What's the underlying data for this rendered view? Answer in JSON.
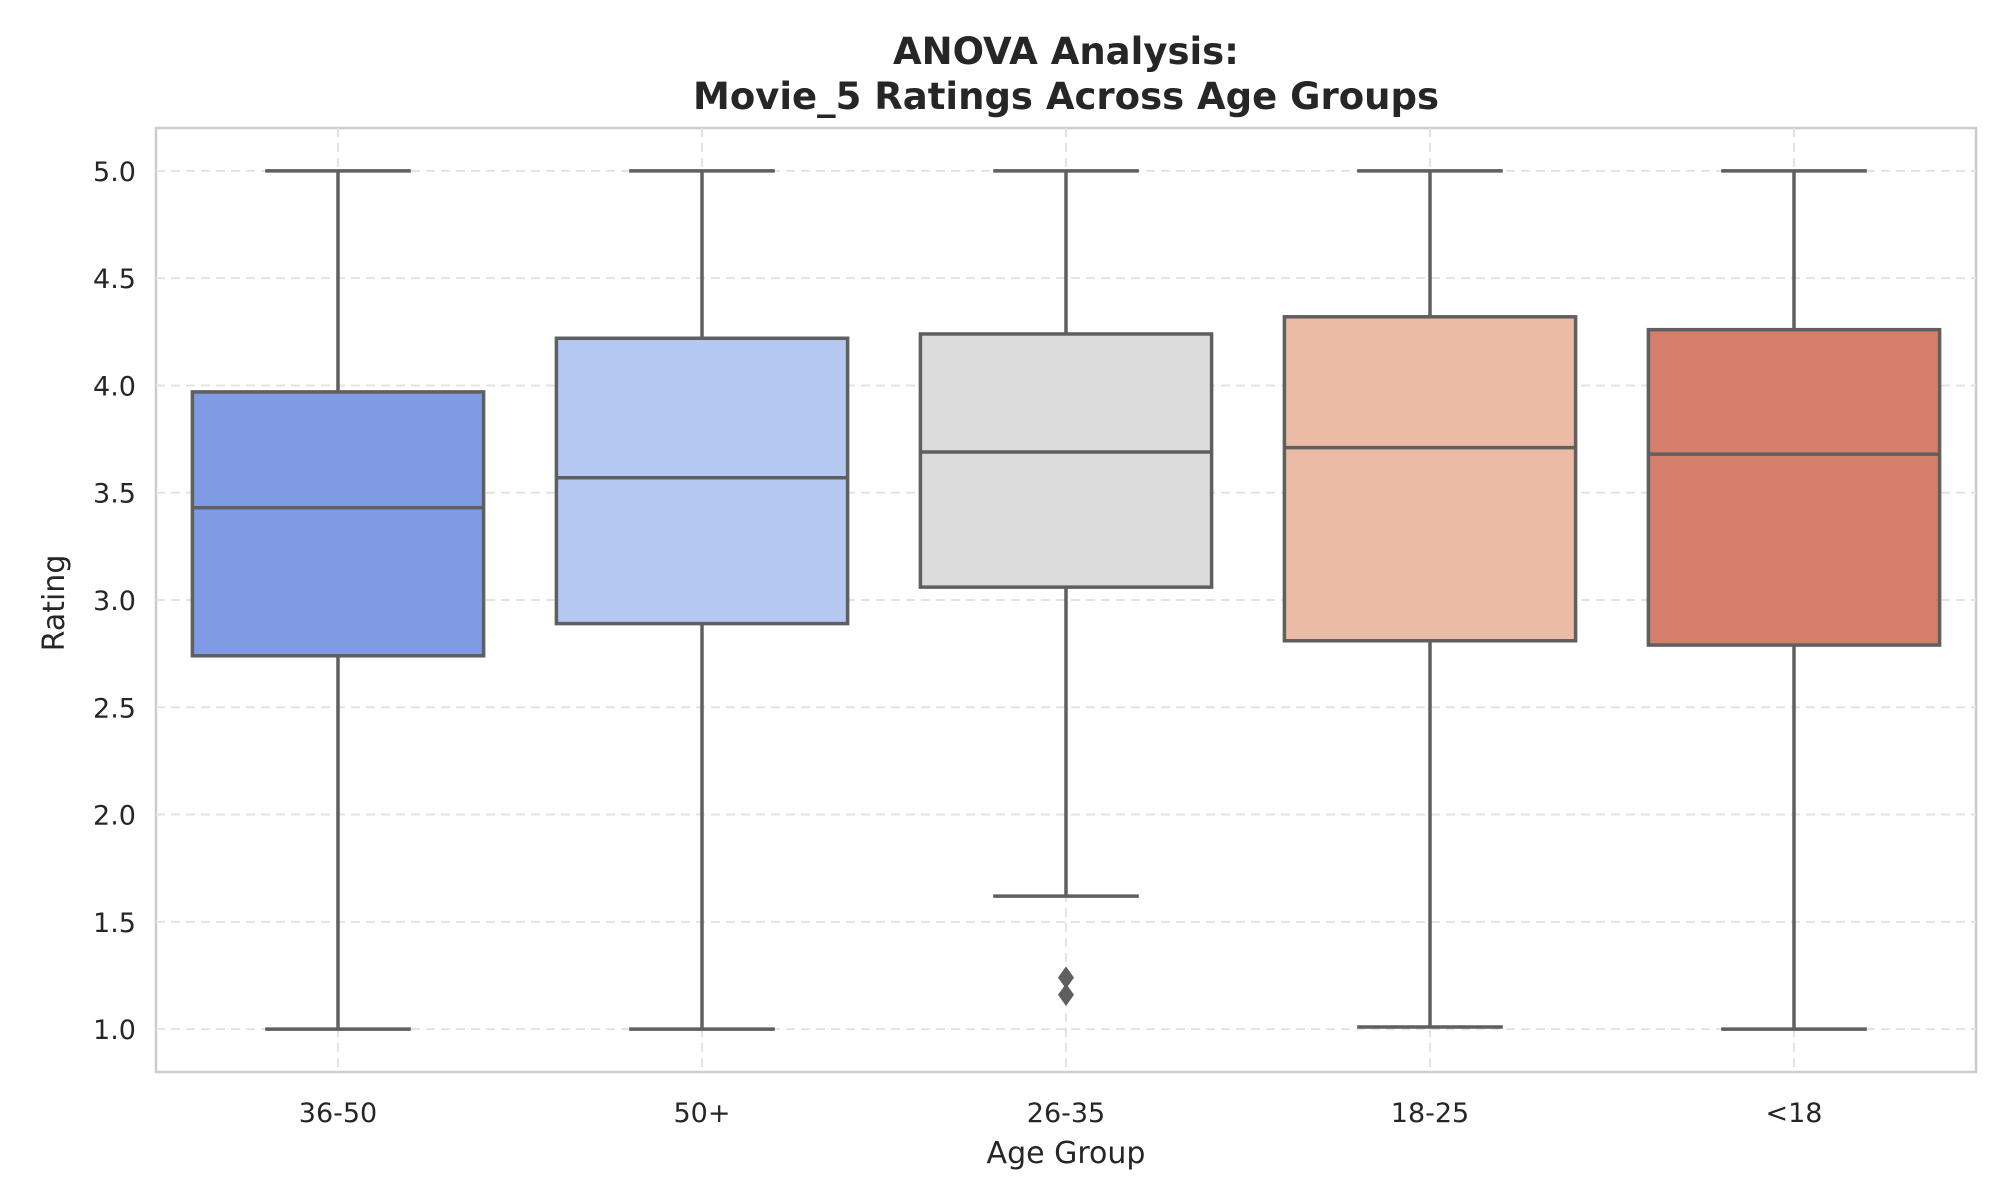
{
  "chart_data": {
    "type": "box",
    "title": "ANOVA Analysis:\nMovie_5 Ratings Across Age Groups",
    "title_lines": [
      "ANOVA Analysis:",
      "Movie_5 Ratings Across Age Groups"
    ],
    "xlabel": "Age Group",
    "ylabel": "Rating",
    "ylim": [
      0.8,
      5.2
    ],
    "yticks": [
      "1.0",
      "1.5",
      "2.0",
      "2.5",
      "3.0",
      "3.5",
      "4.0",
      "4.5",
      "5.0"
    ],
    "grid": true,
    "categories": [
      "36-50",
      "50+",
      "26-35",
      "18-25",
      "<18"
    ],
    "boxes": [
      {
        "category": "36-50",
        "whisker_low": 1.0,
        "q1": 2.74,
        "median": 3.43,
        "q3": 3.97,
        "whisker_high": 5.0,
        "outliers": [],
        "color": "#7f9be3"
      },
      {
        "category": "50+",
        "whisker_low": 1.0,
        "q1": 2.89,
        "median": 3.57,
        "q3": 4.22,
        "whisker_high": 5.0,
        "outliers": [],
        "color": "#b5c8f2"
      },
      {
        "category": "26-35",
        "whisker_low": 1.62,
        "q1": 3.06,
        "median": 3.69,
        "q3": 4.24,
        "whisker_high": 5.0,
        "outliers": [
          1.24,
          1.16
        ],
        "color": "#dcdcdc"
      },
      {
        "category": "18-25",
        "whisker_low": 1.01,
        "q1": 2.81,
        "median": 3.71,
        "q3": 4.32,
        "whisker_high": 5.0,
        "outliers": [],
        "color": "#ecbba6"
      },
      {
        "category": "<18",
        "whisker_low": 1.0,
        "q1": 2.79,
        "median": 3.68,
        "q3": 4.26,
        "whisker_high": 5.0,
        "outliers": [],
        "color": "#d57f6b"
      }
    ]
  }
}
